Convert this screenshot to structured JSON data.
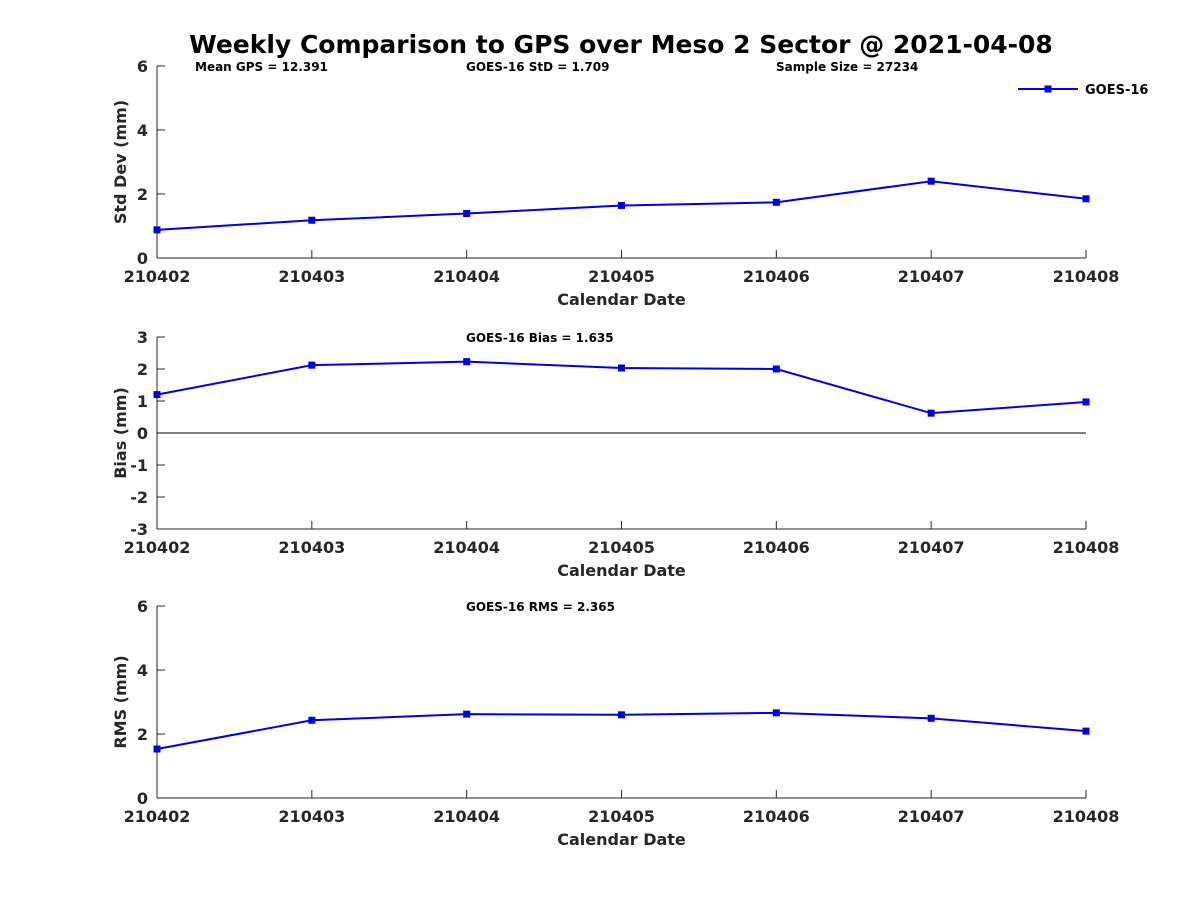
{
  "title": "Weekly Comparison to GPS over Meso 2 Sector @ 2021-04-08",
  "legend": {
    "label": "GOES-16",
    "color": "#0000e0"
  },
  "chart_data": [
    {
      "type": "line",
      "name": "std-dev",
      "categories": [
        "210402",
        "210403",
        "210404",
        "210405",
        "210406",
        "210407",
        "210408"
      ],
      "series": [
        {
          "name": "GOES-16",
          "values": [
            0.88,
            1.18,
            1.39,
            1.64,
            1.74,
            2.4,
            1.85
          ]
        }
      ],
      "xlabel": "Calendar Date",
      "ylabel": "Std Dev (mm)",
      "ylim": [
        0,
        6
      ],
      "yticks": [
        "0",
        "2",
        "4",
        "6"
      ],
      "annotations": [
        "Mean GPS = 12.391",
        "GOES-16 StD = 1.709",
        "Sample Size = 27234"
      ],
      "zero_line": false
    },
    {
      "type": "line",
      "name": "bias",
      "categories": [
        "210402",
        "210403",
        "210404",
        "210405",
        "210406",
        "210407",
        "210408"
      ],
      "series": [
        {
          "name": "GOES-16",
          "values": [
            1.2,
            2.12,
            2.23,
            2.03,
            2.0,
            0.62,
            0.97
          ]
        }
      ],
      "xlabel": "Calendar Date",
      "ylabel": "Bias (mm)",
      "ylim": [
        -3,
        3
      ],
      "yticks": [
        "-3",
        "-2",
        "-1",
        "0",
        "1",
        "2",
        "3"
      ],
      "annotations": [
        "GOES-16 Bias  = 1.635"
      ],
      "zero_line": true
    },
    {
      "type": "line",
      "name": "rms",
      "categories": [
        "210402",
        "210403",
        "210404",
        "210405",
        "210406",
        "210407",
        "210408"
      ],
      "series": [
        {
          "name": "GOES-16",
          "values": [
            1.53,
            2.43,
            2.62,
            2.6,
            2.66,
            2.49,
            2.09
          ]
        }
      ],
      "xlabel": "Calendar Date",
      "ylabel": "RMS (mm)",
      "ylim": [
        0,
        6
      ],
      "yticks": [
        "0",
        "2",
        "4",
        "6"
      ],
      "annotations": [
        "GOES-16 RMS = 2.365"
      ],
      "zero_line": false
    }
  ]
}
